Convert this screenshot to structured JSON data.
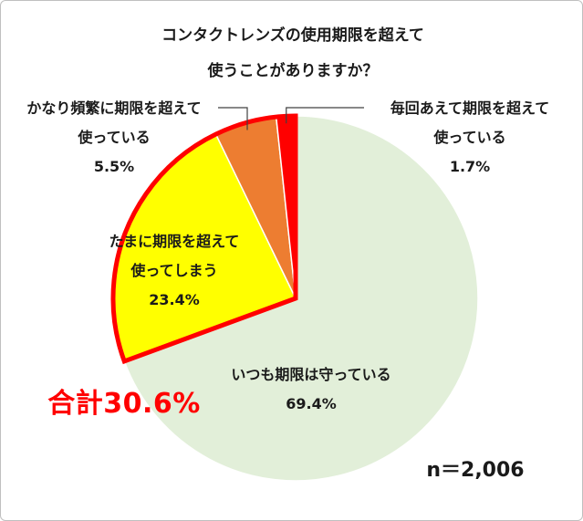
{
  "chart_data": {
    "type": "pie",
    "title_lines": [
      "コンタクトレンズの使用期限を超えて",
      "使うことがありますか？"
    ],
    "slices": [
      {
        "label_lines": [
          "いつも期限は守っている"
        ],
        "value": 69.4,
        "display": "69.4%",
        "color": "#e2efd9"
      },
      {
        "label_lines": [
          "たまに期限を超えて",
          "使ってしまう"
        ],
        "value": 23.4,
        "display": "23.4%",
        "color": "#ffff00"
      },
      {
        "label_lines": [
          "かなり頻繁に期限を超えて",
          "使っている"
        ],
        "value": 5.5,
        "display": "5.5%",
        "color": "#ed7d31"
      },
      {
        "label_lines": [
          "毎回あえて期限を超えて",
          "使っている"
        ],
        "value": 1.7,
        "display": "1.7%",
        "color": "#ff0000"
      }
    ],
    "highlight_total": "合計30.6%",
    "sample_size": "n＝2,006",
    "highlight_color": "#ff0000"
  }
}
